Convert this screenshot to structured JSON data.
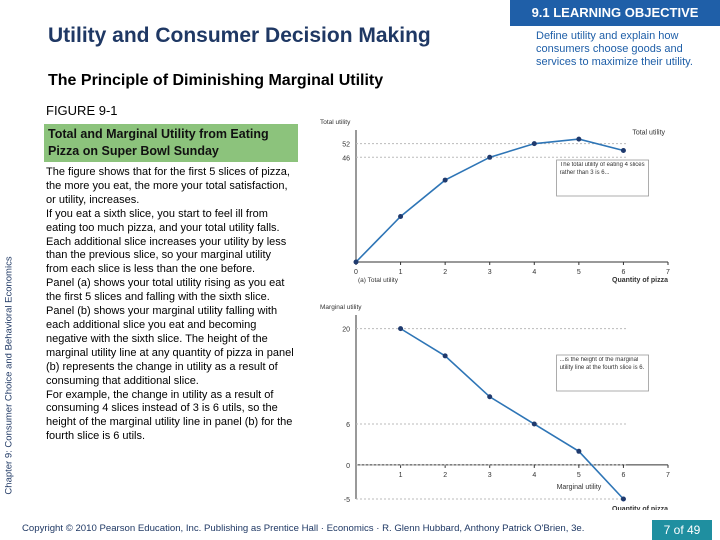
{
  "header": {
    "title": "Utility and Consumer Decision Making",
    "objective_label": "9.1 LEARNING OBJECTIVE",
    "objective_text": "Define utility and explain how consumers choose goods and services to maximize their utility."
  },
  "side_label": "Chapter 9: Consumer Choice and Behavioral Economics",
  "subtitle": "The Principle of Diminishing Marginal Utility",
  "figure": {
    "number": "FIGURE 9-1",
    "caption": "Total and Marginal Utility from Eating Pizza on Super Bowl Sunday"
  },
  "body": [
    "The figure shows that for the first 5 slices of pizza, the more you eat, the more your total satisfaction, or utility, increases.",
    "If you eat a sixth slice, you start to feel ill from eating too much pizza, and your total utility falls. Each additional slice increases your utility by less than the previous slice, so your marginal utility from each slice is less than the one before.",
    "Panel (a) shows your total utility rising as you eat the first 5 slices and falling with the sixth slice.",
    "Panel (b) shows your marginal utility falling with each additional slice you eat and becoming negative with the sixth slice. The height of the marginal utility line at any quantity of pizza in panel (b) represents the change in utility as a result of consuming that additional slice.",
    "For example, the change in utility as a result of consuming 4 slices instead of 3 is 6 utils, so the height of the marginal utility line in panel (b) for the fourth slice is 6 utils."
  ],
  "chart_data": [
    {
      "type": "line",
      "title": "(a) Total utility",
      "y_label": "Total utility",
      "x_label": "Quantity of pizza",
      "curve_label": "Total utility",
      "annotation": "The total utility of eating 4 slices rather than 3 is 6...",
      "x": [
        0,
        1,
        2,
        3,
        4,
        5,
        6
      ],
      "values": [
        0,
        20,
        36,
        46,
        52,
        54,
        49
      ],
      "color": "#2e75b6",
      "marker_color": "#1f3a6e",
      "xlim": [
        0,
        7
      ],
      "xticks": [
        0,
        1,
        2,
        3,
        4,
        5,
        6,
        7
      ],
      "ylim": [
        0,
        58
      ],
      "yticks": [
        52,
        46
      ]
    },
    {
      "type": "line",
      "title": "(b) Marginal utility",
      "y_label": "Marginal utility",
      "x_label": "Quantity of pizza",
      "curve_label": "Marginal utility",
      "annotation": "...is the height of the marginal utility line at the fourth slice is 6.",
      "x": [
        1,
        2,
        3,
        4,
        5,
        6
      ],
      "values": [
        20,
        16,
        10,
        6,
        2,
        -5
      ],
      "color": "#2e75b6",
      "marker_color": "#1f3a6e",
      "xlim": [
        0,
        7
      ],
      "xticks": [
        1,
        2,
        3,
        4,
        5,
        6,
        7
      ],
      "ylim": [
        -5,
        22
      ],
      "yticks": [
        20,
        6,
        0,
        -5
      ]
    }
  ],
  "footer": {
    "copyright": "Copyright © 2010 Pearson Education, Inc. Publishing as Prentice Hall · Economics · R. Glenn Hubbard, Anthony Patrick O'Brien, 3e.",
    "page": "7 of 49"
  }
}
